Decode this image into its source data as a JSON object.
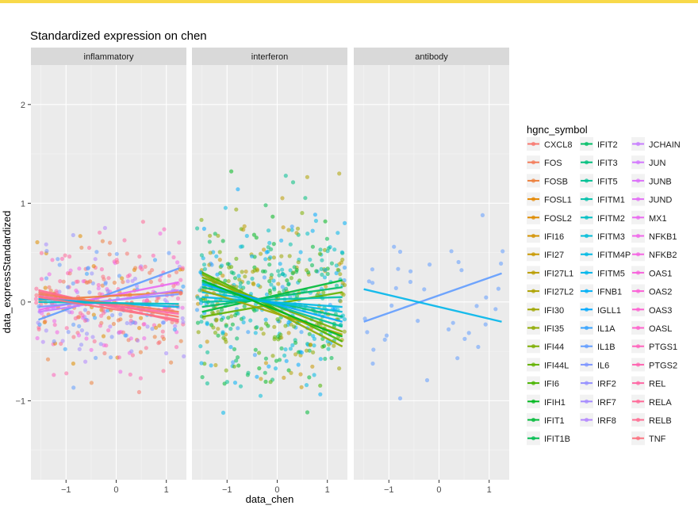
{
  "chart_data": {
    "type": "scatter",
    "title": "Standardized expression on chen",
    "xlabel": "data_chen",
    "ylabel": "data_expressStandardized",
    "xlim": [
      -1.7,
      1.4
    ],
    "ylim": [
      -1.8,
      2.4
    ],
    "x_ticks": [
      -1,
      0,
      1
    ],
    "x_tick_labels": [
      "−1",
      "0",
      "1"
    ],
    "y_ticks": [
      -1,
      0,
      1,
      2
    ],
    "y_tick_labels": [
      "−1",
      "0",
      "1",
      "2"
    ],
    "grid": true,
    "legend_placement": "right",
    "legend_title": "hgnc_symbol",
    "facets": [
      "inflammatory",
      "interferon",
      "antibody"
    ],
    "genes": [
      {
        "name": "CXCL8",
        "color": "#F8766D"
      },
      {
        "name": "FOS",
        "color": "#F37B59"
      },
      {
        "name": "FOSB",
        "color": "#ED813E"
      },
      {
        "name": "FOSL1",
        "color": "#E58700"
      },
      {
        "name": "FOSL2",
        "color": "#DE8C00"
      },
      {
        "name": "IFI16",
        "color": "#D39200"
      },
      {
        "name": "IFI27",
        "color": "#C99800"
      },
      {
        "name": "IFI27L1",
        "color": "#BB9D00"
      },
      {
        "name": "IFI27L2",
        "color": "#AEA200"
      },
      {
        "name": "IFI30",
        "color": "#9FA600"
      },
      {
        "name": "IFI35",
        "color": "#8FAA00"
      },
      {
        "name": "IFI44",
        "color": "#7CAE00"
      },
      {
        "name": "IFI44L",
        "color": "#64B200"
      },
      {
        "name": "IFI6",
        "color": "#49B400"
      },
      {
        "name": "IFIH1",
        "color": "#00B81F"
      },
      {
        "name": "IFIT1",
        "color": "#00BA38"
      },
      {
        "name": "IFIT1B",
        "color": "#00BC4F"
      },
      {
        "name": "IFIT2",
        "color": "#00BE67"
      },
      {
        "name": "IFIT3",
        "color": "#00BF7D"
      },
      {
        "name": "IFIT5",
        "color": "#00C094"
      },
      {
        "name": "IFITM1",
        "color": "#00C0AA"
      },
      {
        "name": "IFITM2",
        "color": "#00BFC4"
      },
      {
        "name": "IFITM3",
        "color": "#00BCD8"
      },
      {
        "name": "IFITM4P",
        "color": "#00B9E3"
      },
      {
        "name": "IFITM5",
        "color": "#00B6EB"
      },
      {
        "name": "IFNB1",
        "color": "#00B0F6"
      },
      {
        "name": "IGLL1",
        "color": "#00A9FF"
      },
      {
        "name": "IL1A",
        "color": "#35A2FF"
      },
      {
        "name": "IL1B",
        "color": "#619CFF"
      },
      {
        "name": "IL6",
        "color": "#7E96FF"
      },
      {
        "name": "IRF2",
        "color": "#9590FF"
      },
      {
        "name": "IRF7",
        "color": "#A58AFF"
      },
      {
        "name": "IRF8",
        "color": "#B385FF"
      },
      {
        "name": "JCHAIN",
        "color": "#C77CFF"
      },
      {
        "name": "JUN",
        "color": "#D376FF"
      },
      {
        "name": "JUNB",
        "color": "#DC71FA"
      },
      {
        "name": "JUND",
        "color": "#E36EF6"
      },
      {
        "name": "MX1",
        "color": "#EA6AF1"
      },
      {
        "name": "NFKB1",
        "color": "#F066EA"
      },
      {
        "name": "NFKB2",
        "color": "#F564E3"
      },
      {
        "name": "OAS1",
        "color": "#F863DC"
      },
      {
        "name": "OAS2",
        "color": "#FB61D7"
      },
      {
        "name": "OAS3",
        "color": "#FD61D1"
      },
      {
        "name": "OASL",
        "color": "#FF61CC"
      },
      {
        "name": "PTGS1",
        "color": "#FF62BC"
      },
      {
        "name": "PTGS2",
        "color": "#FF64B0"
      },
      {
        "name": "REL",
        "color": "#FF67A4"
      },
      {
        "name": "RELA",
        "color": "#FF6A98"
      },
      {
        "name": "RELB",
        "color": "#FF6C91"
      },
      {
        "name": "TNF",
        "color": "#FC717F"
      }
    ],
    "trend_lines": {
      "inflammatory": [
        {
          "x": [
            -1.55,
            1.25
          ],
          "y": [
            -0.18,
            0.34
          ]
        },
        {
          "x": [
            -1.55,
            1.25
          ],
          "y": [
            -0.08,
            0.2
          ]
        },
        {
          "x": [
            -1.55,
            1.25
          ],
          "y": [
            0.1,
            -0.15
          ]
        },
        {
          "x": [
            -1.55,
            1.25
          ],
          "y": [
            0.02,
            0.1
          ]
        },
        {
          "x": [
            -1.55,
            1.25
          ],
          "y": [
            0.06,
            -0.12
          ]
        },
        {
          "x": [
            -1.55,
            1.25
          ],
          "y": [
            -0.05,
            0.08
          ]
        },
        {
          "x": [
            -1.55,
            1.25
          ],
          "y": [
            0.12,
            -0.2
          ]
        },
        {
          "x": [
            -1.55,
            1.25
          ],
          "y": [
            0.03,
            -0.05
          ]
        },
        {
          "x": [
            -1.55,
            1.25
          ],
          "y": [
            -0.1,
            0.12
          ]
        },
        {
          "x": [
            -1.55,
            1.25
          ],
          "y": [
            0.08,
            -0.1
          ]
        },
        {
          "x": [
            -1.55,
            1.25
          ],
          "y": [
            0.0,
            -0.02
          ]
        },
        {
          "x": [
            -1.55,
            1.25
          ],
          "y": [
            0.05,
            -0.18
          ]
        }
      ],
      "interferon": [
        {
          "x": [
            -1.5,
            1.3
          ],
          "y": [
            0.3,
            -0.4
          ]
        },
        {
          "x": [
            -1.5,
            1.3
          ],
          "y": [
            -0.1,
            0.22
          ]
        },
        {
          "x": [
            -1.5,
            1.3
          ],
          "y": [
            0.25,
            -0.3
          ]
        },
        {
          "x": [
            -1.5,
            1.3
          ],
          "y": [
            0.15,
            -0.15
          ]
        },
        {
          "x": [
            -1.5,
            1.3
          ],
          "y": [
            -0.15,
            0.1
          ]
        },
        {
          "x": [
            -1.5,
            1.3
          ],
          "y": [
            0.2,
            -0.25
          ]
        },
        {
          "x": [
            -1.5,
            1.3
          ],
          "y": [
            0.1,
            -0.1
          ]
        },
        {
          "x": [
            -1.5,
            1.3
          ],
          "y": [
            0.05,
            -0.05
          ]
        },
        {
          "x": [
            -1.5,
            1.3
          ],
          "y": [
            0.28,
            -0.45
          ]
        },
        {
          "x": [
            -1.5,
            1.3
          ],
          "y": [
            -0.05,
            0.15
          ]
        },
        {
          "x": [
            -1.5,
            1.3
          ],
          "y": [
            0.18,
            -0.2
          ]
        },
        {
          "x": [
            -1.5,
            1.3
          ],
          "y": [
            0.12,
            -0.33
          ]
        },
        {
          "x": [
            -1.5,
            1.3
          ],
          "y": [
            0.0,
            0.05
          ]
        },
        {
          "x": [
            -1.5,
            1.3
          ],
          "y": [
            0.22,
            -0.35
          ]
        }
      ],
      "antibody": [
        {
          "x": [
            -1.5,
            1.25
          ],
          "y": [
            -0.2,
            0.29
          ]
        },
        {
          "x": [
            -1.5,
            1.25
          ],
          "y": [
            0.13,
            -0.2
          ]
        }
      ]
    }
  }
}
